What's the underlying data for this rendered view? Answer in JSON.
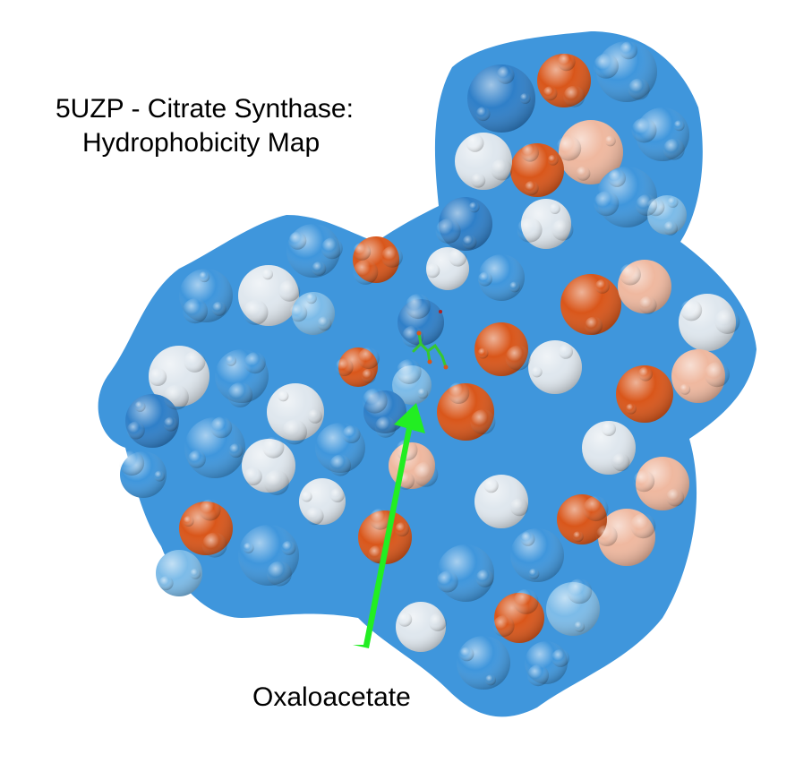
{
  "title": {
    "line1": "5UZP - Citrate Synthase:",
    "line2": "Hydrophobicity Map"
  },
  "annotation": {
    "label": "Oxaloacetate",
    "arrow_color": "#22ee22"
  },
  "palette": {
    "hydrophilic_deep": "#2f7fc8",
    "hydrophilic": "#3f96dc",
    "hydrophilic_light": "#7cbbe8",
    "neutral": "#dfe7ee",
    "hydrophobic_light": "#efb89f",
    "hydrophobic": "#d9561a",
    "ligand": "#36c830"
  }
}
